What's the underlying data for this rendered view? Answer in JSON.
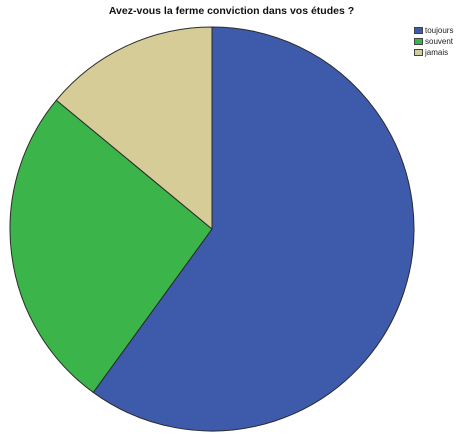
{
  "chart_data": {
    "type": "pie",
    "title": "Avez-vous la ferme conviction dans vos études ?",
    "categories": [
      "toujours",
      "souvent",
      "jamais"
    ],
    "values": [
      60,
      26,
      14
    ],
    "unit": "%",
    "colors": [
      "#3e5bab",
      "#3bb54a",
      "#d6cc97"
    ],
    "start_angle_deg": 0,
    "direction": "clockwise",
    "legend_position": "top-right"
  }
}
